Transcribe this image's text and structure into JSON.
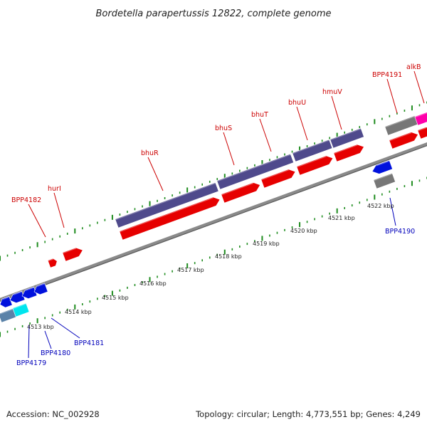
{
  "title": "Bordetella parapertussis 12822, complete genome",
  "footer": {
    "accession": "Accession: NC_002928",
    "summary": "Topology: circular; Length: 4,773,551 bp; Genes: 4,249"
  },
  "colors": {
    "forward_label": "#cc0000",
    "reverse_label": "#0000bb",
    "backbone": "#8a8a8a",
    "tick_marks": "#1e8c1e",
    "red_cds": "#e60000",
    "purple_gene": "#4f4a8c",
    "blue_cds": "#0011dd",
    "grey_gene": "#777777",
    "cyan_gene": "#00e5ee",
    "steel_gene": "#5a82a8",
    "magenta_gene": "#ff00aa"
  },
  "scale_labels": [
    "4513 kbp",
    "4514 kbp",
    "4515 kbp",
    "4516 kbp",
    "4517 kbp",
    "4518 kbp",
    "4519 kbp",
    "4520 kbp",
    "4521 kbp",
    "4522 kbp"
  ],
  "forward_gene_labels": [
    "BPP4182",
    "hurI",
    "bhuR",
    "bhuS",
    "bhuT",
    "bhuU",
    "hmuV",
    "BPP4191",
    "alkB"
  ],
  "reverse_gene_labels": [
    "BPP4179",
    "BPP4180",
    "BPP4181",
    "BPP4190"
  ]
}
